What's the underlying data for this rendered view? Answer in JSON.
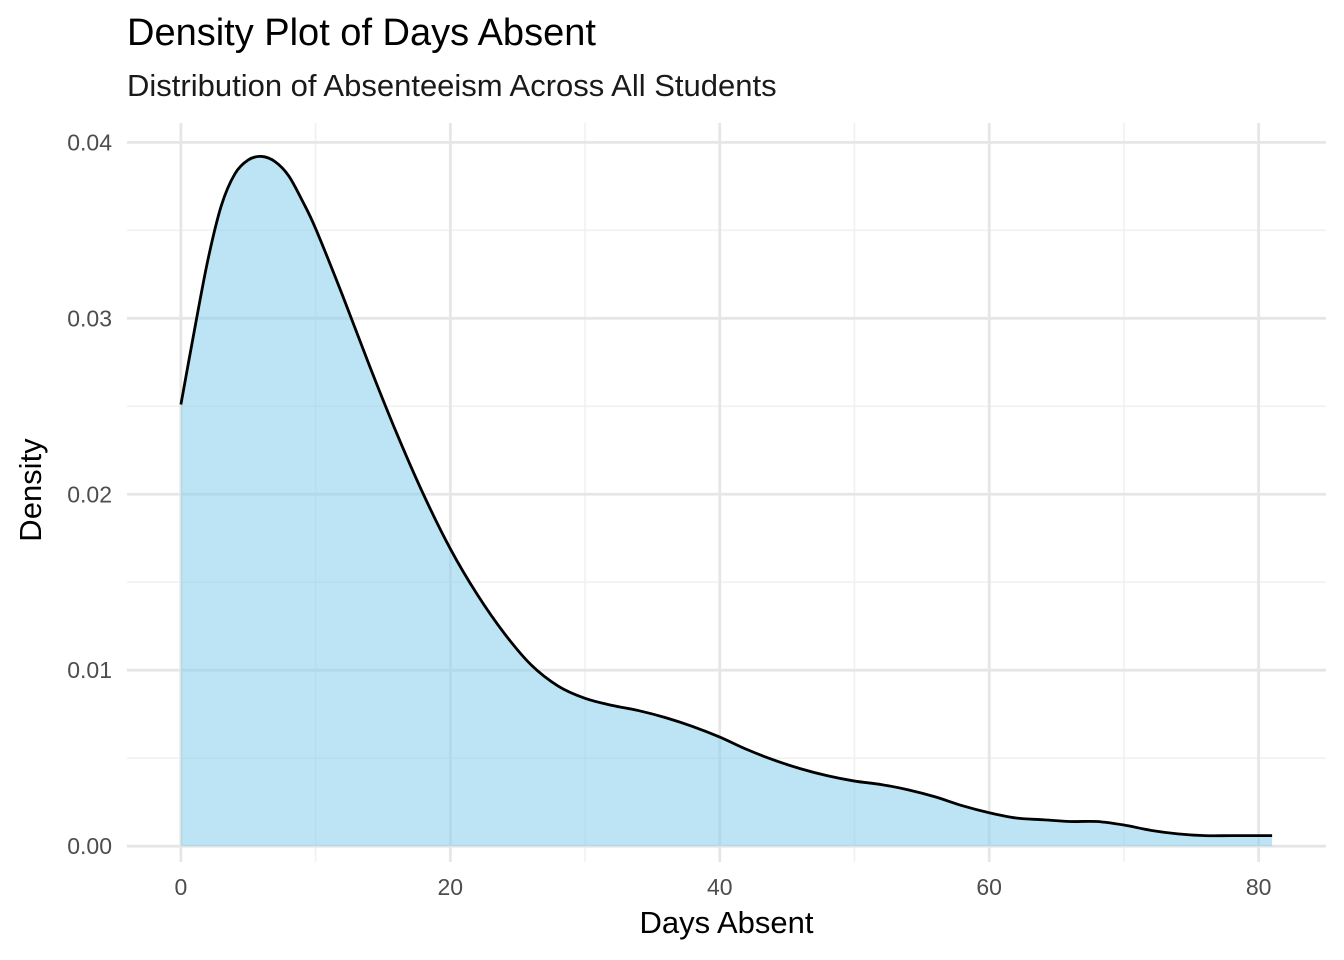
{
  "chart_data": {
    "type": "area",
    "title": "Density Plot of Days Absent",
    "subtitle": "Distribution of Absenteeism Across All Students",
    "xlabel": "Days Absent",
    "ylabel": "Density",
    "xlim": [
      -4,
      85
    ],
    "ylim": [
      -0.0009,
      0.0411
    ],
    "x_ticks": [
      0,
      20,
      40,
      60,
      80
    ],
    "x_tick_labels": [
      "0",
      "20",
      "40",
      "60",
      "80"
    ],
    "y_ticks": [
      0.0,
      0.01,
      0.02,
      0.03,
      0.04
    ],
    "y_tick_labels": [
      "0.00",
      "0.01",
      "0.02",
      "0.03",
      "0.04"
    ],
    "grid": true,
    "legend": "none",
    "colors": {
      "fill": "#87CEEB",
      "fill_opacity": 0.55,
      "line": "#000000",
      "grid_major": "#e6e6e6",
      "grid_minor": "#f1f1f1"
    },
    "series": [
      {
        "x": [
          0,
          1,
          2,
          3,
          4,
          5,
          6,
          7,
          8,
          9,
          10,
          12,
          14,
          16,
          18,
          20,
          22,
          24,
          26,
          28,
          30,
          32,
          34,
          36,
          38,
          40,
          42,
          44,
          46,
          48,
          50,
          52,
          54,
          56,
          58,
          60,
          62,
          64,
          66,
          68,
          70,
          72,
          74,
          76,
          78,
          80,
          81
        ],
        "y": [
          0.0251,
          0.0293,
          0.0333,
          0.0364,
          0.0382,
          0.039,
          0.0392,
          0.0389,
          0.0381,
          0.0367,
          0.0351,
          0.0313,
          0.0273,
          0.0235,
          0.02,
          0.0169,
          0.0143,
          0.0121,
          0.0103,
          0.0091,
          0.0084,
          0.008,
          0.0077,
          0.0073,
          0.0068,
          0.0062,
          0.0055,
          0.0049,
          0.0044,
          0.004,
          0.0037,
          0.0035,
          0.0032,
          0.0028,
          0.0023,
          0.0019,
          0.0016,
          0.0015,
          0.0014,
          0.0014,
          0.0012,
          0.0009,
          0.0007,
          0.0006,
          0.0006,
          0.0006,
          0.0006
        ]
      }
    ]
  }
}
